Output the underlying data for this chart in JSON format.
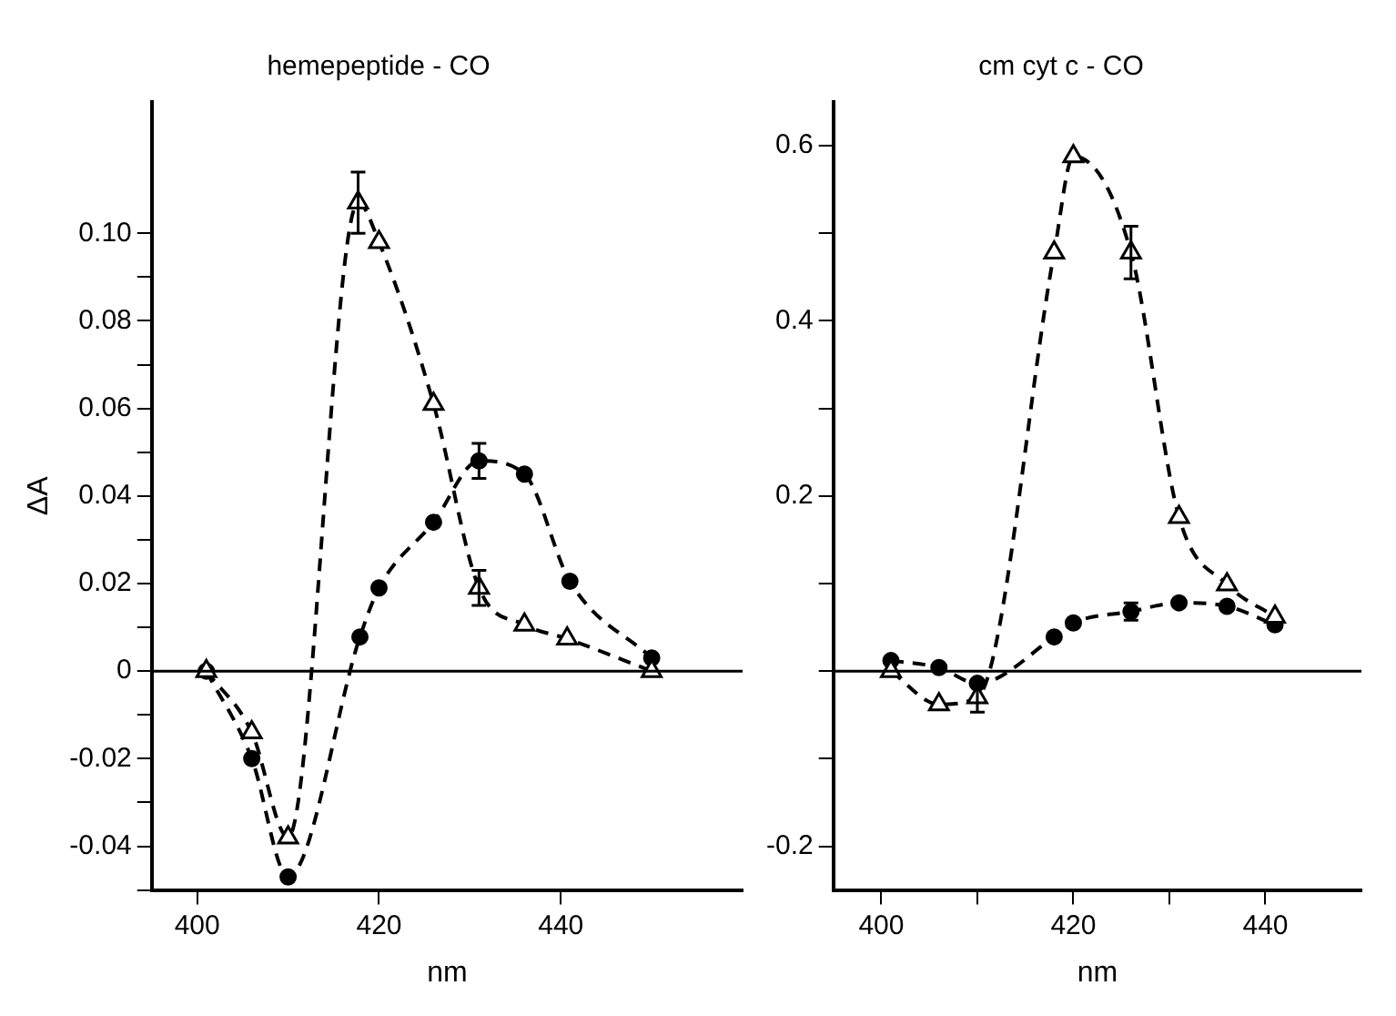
{
  "chart_data": [
    {
      "type": "line",
      "title": "hemepeptide - CO",
      "xlabel": "nm",
      "ylabel": "ΔA",
      "xlim": [
        395,
        460
      ],
      "xticks": [
        400,
        420,
        440
      ],
      "ylim": [
        -0.05,
        0.13
      ],
      "yticks": [
        {
          "value": -0.05,
          "label": null
        },
        -0.04,
        {
          "value": -0.03,
          "label": null
        },
        -0.02,
        {
          "value": -0.01,
          "label": null
        },
        0,
        {
          "value": 0.01,
          "label": null
        },
        0.02,
        {
          "value": 0.03,
          "label": null
        },
        0.04,
        {
          "value": 0.05,
          "label": null
        },
        0.06,
        {
          "value": 0.07,
          "label": null
        },
        0.08,
        {
          "value": 0.09,
          "label": null
        },
        {
          "value": 0.1,
          "label": "0.10"
        }
      ],
      "grid": false,
      "legend": false,
      "ref_lines": [
        {
          "axis": "y",
          "value": 0
        }
      ],
      "series": [
        {
          "color": "#000000",
          "marker": "triangle",
          "line_style": "dashed",
          "x": [
            401,
            406,
            410,
            417.7,
            420,
            426,
            431,
            436,
            440.7,
            450
          ],
          "values": [
            0,
            -0.014,
            -0.038,
            0.107,
            0.098,
            0.061,
            0.019,
            0.0106,
            0.0074,
            0
          ],
          "errors": [
            null,
            null,
            null,
            0.007,
            null,
            null,
            0.004,
            null,
            null,
            null
          ]
        },
        {
          "color": "#000000",
          "marker": "circle",
          "line_style": "dashed",
          "x": [
            401,
            406,
            410,
            417.9,
            420,
            426,
            431,
            436,
            441,
            450
          ],
          "values": [
            0,
            -0.02,
            -0.047,
            0.0078,
            0.019,
            0.034,
            0.048,
            0.045,
            0.0205,
            0.003
          ],
          "errors": [
            null,
            null,
            null,
            null,
            null,
            null,
            0.004,
            null,
            null,
            null
          ]
        }
      ]
    },
    {
      "type": "line",
      "title": "cm cyt c - CO",
      "xlabel": "nm",
      "xlim": [
        395,
        450
      ],
      "xticks": [
        400,
        {
          "value": 410,
          "label": null
        },
        420,
        {
          "value": 430,
          "label": null
        },
        440
      ],
      "ylim": [
        -0.25,
        0.65
      ],
      "yticks": [
        -0.2,
        {
          "value": -0.1,
          "label": null
        },
        {
          "value": 0,
          "label": null
        },
        {
          "value": 0.1,
          "label": null
        },
        0.2,
        {
          "value": 0.3,
          "label": null
        },
        0.4,
        {
          "value": 0.5,
          "label": null
        },
        0.6
      ],
      "grid": false,
      "legend": false,
      "ref_lines": [
        {
          "axis": "y",
          "value": 0
        }
      ],
      "series": [
        {
          "color": "#000000",
          "marker": "triangle",
          "line_style": "dashed",
          "x": [
            401,
            406,
            410,
            418,
            420,
            426,
            431,
            436,
            441
          ],
          "values": [
            0,
            -0.038,
            -0.03,
            0.478,
            0.588,
            0.478,
            0.176,
            0.099,
            0.062
          ],
          "errors": [
            null,
            null,
            0.017,
            null,
            null,
            0.03,
            null,
            null,
            null
          ]
        },
        {
          "color": "#000000",
          "marker": "circle",
          "line_style": "dashed",
          "x": [
            401,
            406,
            410,
            418,
            420,
            426,
            431,
            436,
            441
          ],
          "values": [
            0.012,
            0.004,
            -0.014,
            0.039,
            0.055,
            0.068,
            0.078,
            0.074,
            0.053
          ],
          "errors": [
            null,
            null,
            null,
            null,
            null,
            0.01,
            null,
            null,
            null
          ]
        }
      ]
    }
  ]
}
